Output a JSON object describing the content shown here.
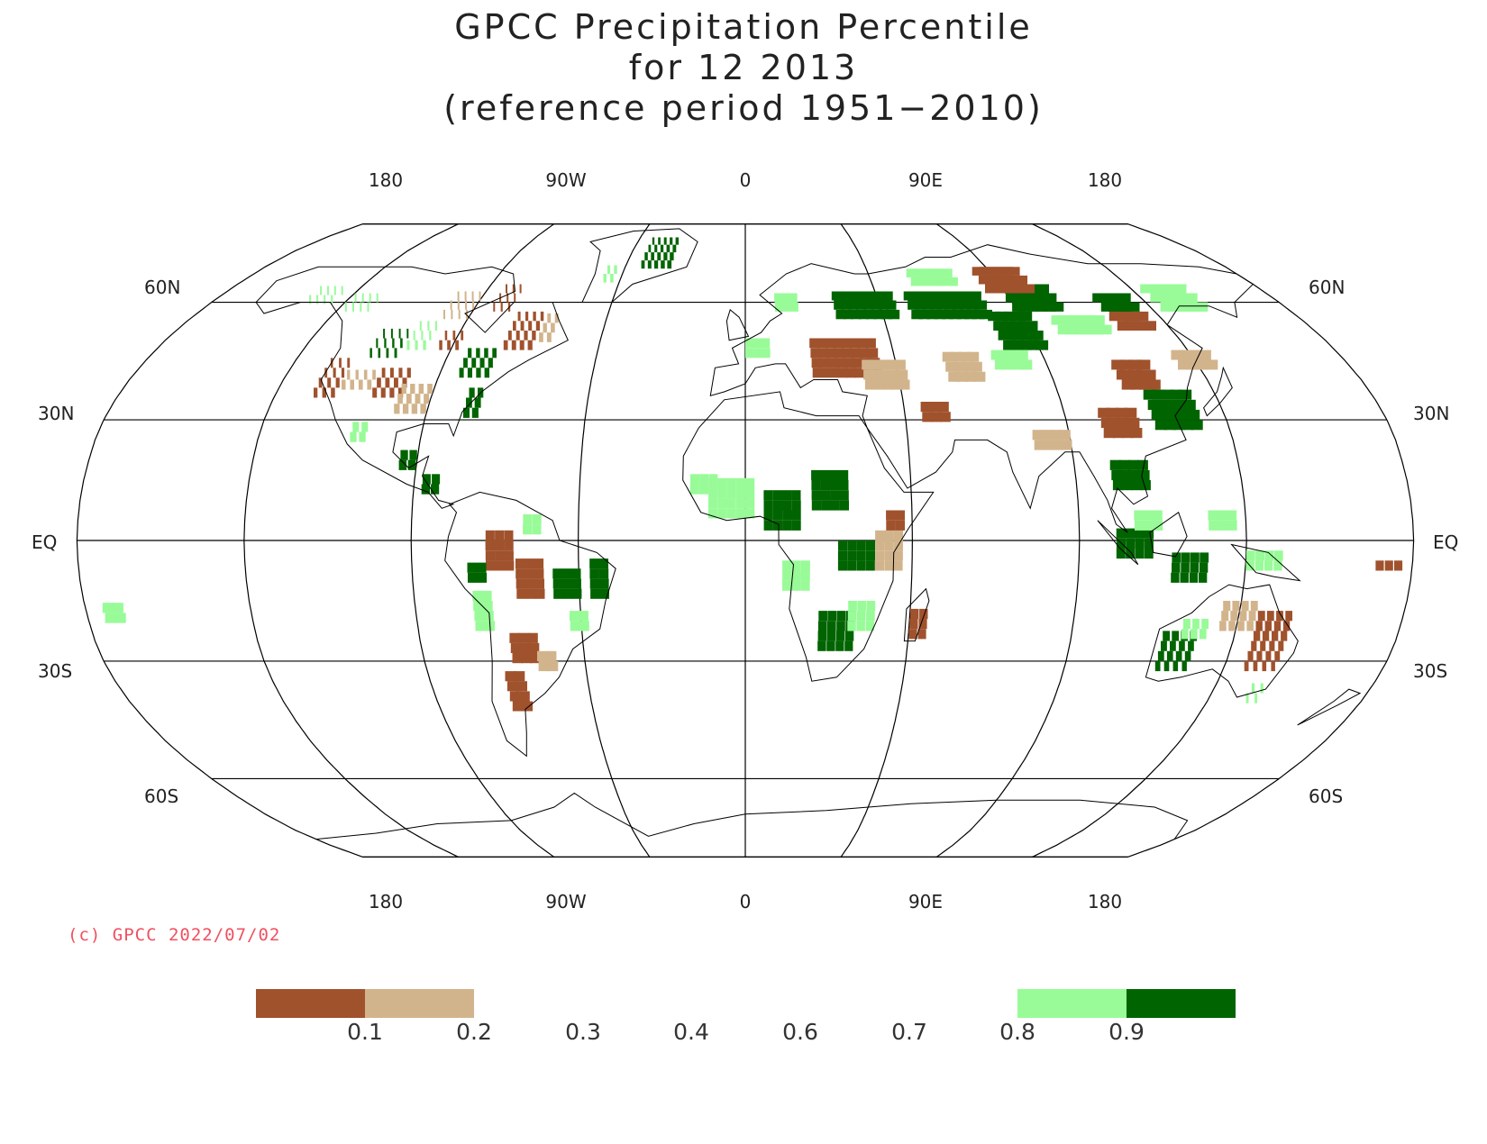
{
  "title": {
    "line1": "GPCC Precipitation Percentile",
    "line2": "for 12 2013",
    "line3": "(reference period 1951−2010)"
  },
  "graticule": {
    "lon_labels_top": [
      "180",
      "90W",
      "0",
      "90E",
      "180"
    ],
    "lon_labels_bottom": [
      "180",
      "90W",
      "0",
      "90E",
      "180"
    ],
    "lat_labels_left": [
      "60N",
      "30N",
      "EQ",
      "30S",
      "60S"
    ],
    "lat_labels_right": [
      "60N",
      "30N",
      "EQ",
      "30S",
      "60S"
    ]
  },
  "credit": "(c) GPCC 2022/07/02",
  "legend": {
    "ticks": [
      "0.1",
      "0.2",
      "0.3",
      "0.4",
      "0.6",
      "0.7",
      "0.8",
      "0.9"
    ],
    "swatches": [
      {
        "from": 0.0,
        "to": 0.1,
        "color": "#a0522d"
      },
      {
        "from": 0.1,
        "to": 0.2,
        "color": "#d2b48c"
      },
      {
        "from": 0.8,
        "to": 0.9,
        "color": "#98fb98"
      },
      {
        "from": 0.9,
        "to": 1.0,
        "color": "#006400"
      }
    ]
  },
  "colors": {
    "very_dry": "#a0522d",
    "dry": "#d2b48c",
    "wet": "#98fb98",
    "very_wet": "#006400",
    "line": "#000000",
    "credit": "#f05060"
  }
}
